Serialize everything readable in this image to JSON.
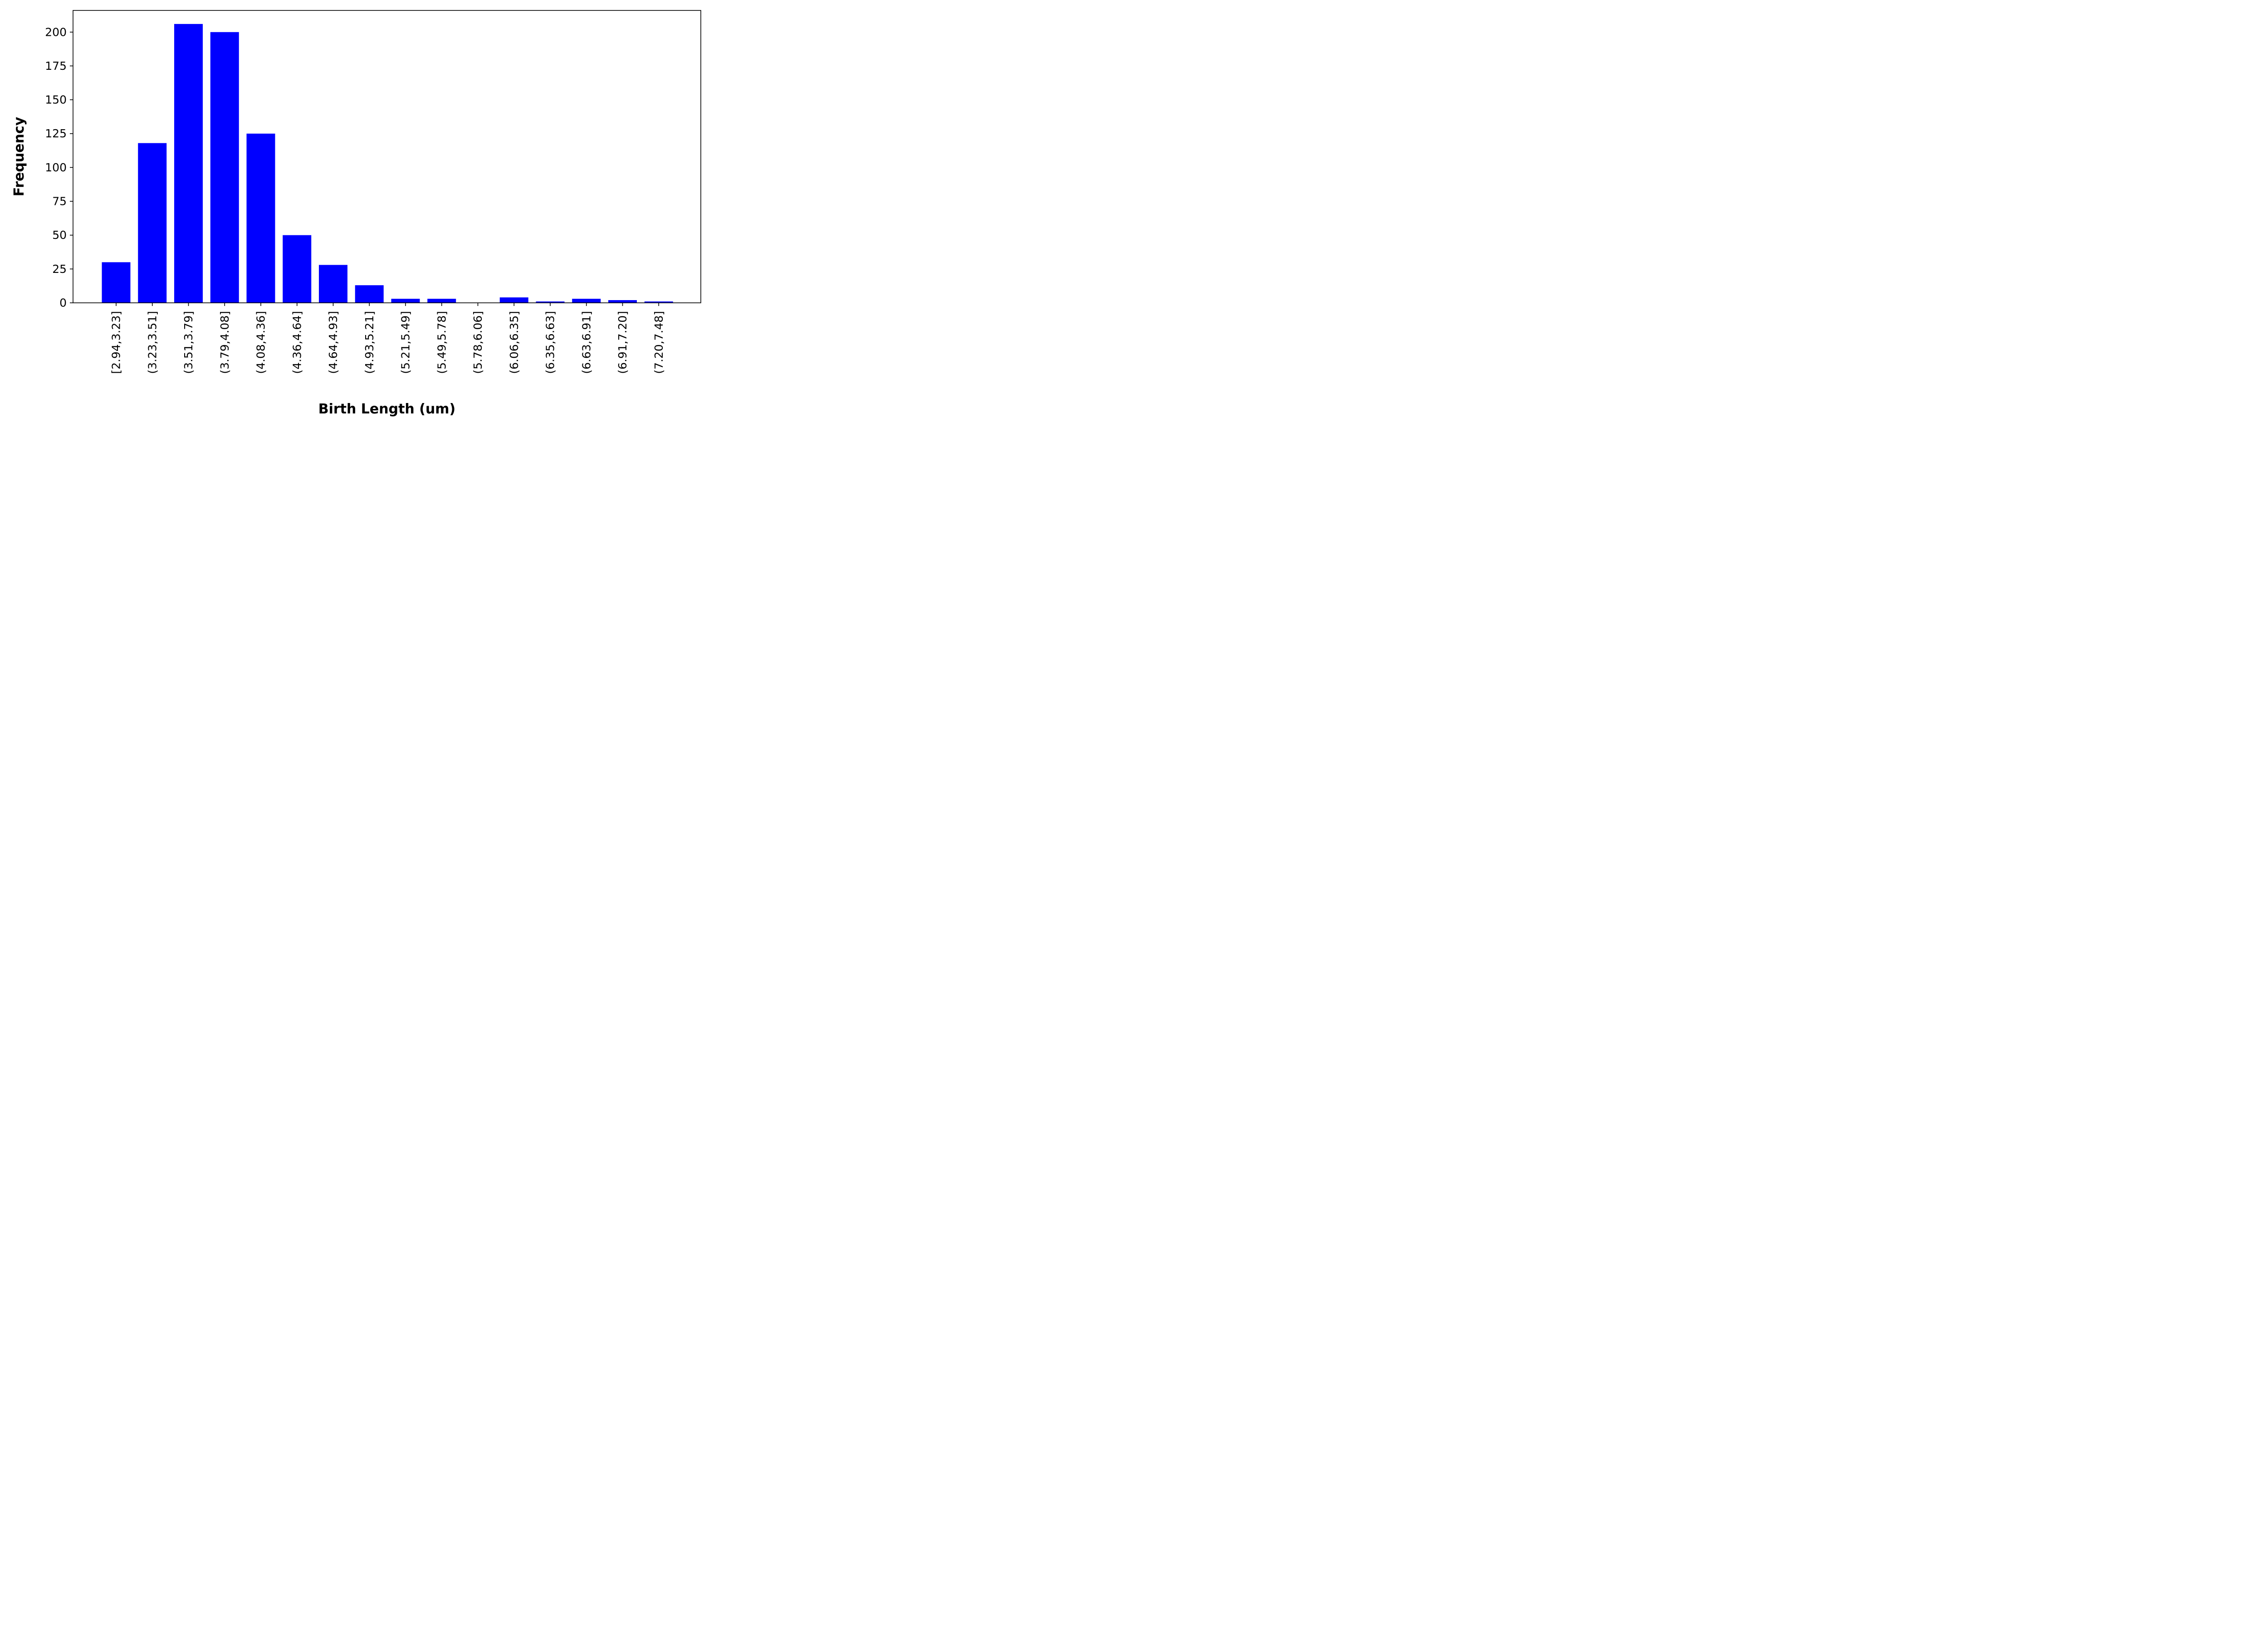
{
  "chart_data": {
    "type": "bar",
    "categories": [
      "[2.94,3.23]",
      "(3.23,3.51]",
      "(3.51,3.79]",
      "(3.79,4.08]",
      "(4.08,4.36]",
      "(4.36,4.64]",
      "(4.64,4.93]",
      "(4.93,5.21]",
      "(5.21,5.49]",
      "(5.49,5.78]",
      "(5.78,6.06]",
      "(6.06,6.35]",
      "(6.35,6.63]",
      "(6.63,6.91]",
      "(6.91,7.20]",
      "(7.20,7.48]"
    ],
    "values": [
      30,
      118,
      206,
      200,
      125,
      50,
      28,
      13,
      3,
      3,
      0,
      4,
      1,
      3,
      2,
      1
    ],
    "xlabel": "Birth Length (um)",
    "ylabel": "Frequency",
    "yticks": [
      0,
      25,
      50,
      75,
      100,
      125,
      150,
      175,
      200
    ],
    "ylim": [
      0,
      216
    ],
    "grid": false,
    "legend": false,
    "colors": {
      "bar": "#0000ff",
      "axis": "#000000",
      "background": "#ffffff"
    }
  }
}
